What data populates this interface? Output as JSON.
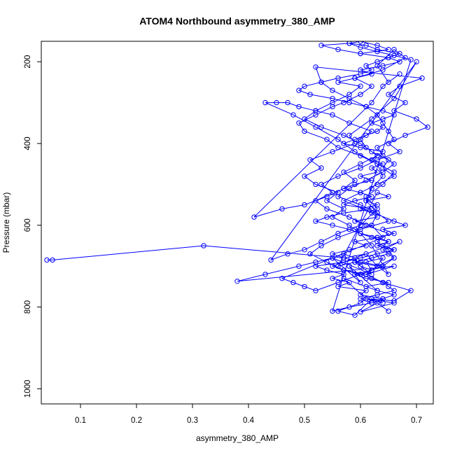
{
  "chart_data": {
    "type": "scatter",
    "title": "ATOM4 Northbound asymmetry_380_AMP",
    "xlabel": "asymmetry_380_AMP",
    "ylabel": "Pressure (mbar)",
    "xlim": [
      0.03,
      0.73
    ],
    "ylim": [
      1037,
      150
    ],
    "y_reversed": true,
    "grid": false,
    "legend": "none",
    "x_ticks": [
      0.1,
      0.2,
      0.3,
      0.4,
      0.5,
      0.6,
      0.7
    ],
    "x_tick_labels": [
      "0.1",
      "0.2",
      "0.3",
      "0.4",
      "0.5",
      "0.6",
      "0.7"
    ],
    "y_ticks": [
      200,
      400,
      600,
      800,
      1000
    ],
    "y_tick_labels": [
      "200",
      "400",
      "600",
      "800",
      "1000"
    ],
    "series": [
      {
        "color": "#0000ff",
        "marker": "open-circle",
        "x": [
          0.04,
          0.05,
          0.32,
          0.57,
          0.61,
          0.63,
          0.59,
          0.62,
          0.55,
          0.6,
          0.58,
          0.63,
          0.57,
          0.61,
          0.6,
          0.56,
          0.59,
          0.62,
          0.64,
          0.61,
          0.66,
          0.6,
          0.63,
          0.65,
          0.62,
          0.66,
          0.69,
          0.64,
          0.61,
          0.66,
          0.38,
          0.43,
          0.49,
          0.52,
          0.55,
          0.57,
          0.59,
          0.6,
          0.62,
          0.61,
          0.64,
          0.63,
          0.65,
          0.62,
          0.6,
          0.58,
          0.55,
          0.57,
          0.54,
          0.56,
          0.52,
          0.5,
          0.53,
          0.51,
          0.55,
          0.59,
          0.58,
          0.62,
          0.66,
          0.7,
          0.44,
          0.47,
          0.5,
          0.53,
          0.56,
          0.6,
          0.63,
          0.61,
          0.64,
          0.66,
          0.63,
          0.6,
          0.56,
          0.54,
          0.5,
          0.49,
          0.52,
          0.55,
          0.57,
          0.6,
          0.62,
          0.59,
          0.64,
          0.68,
          0.66,
          0.63,
          0.65,
          0.67,
          0.64,
          0.62,
          0.41,
          0.46,
          0.5,
          0.54,
          0.57,
          0.59,
          0.57,
          0.6,
          0.63,
          0.61,
          0.6,
          0.62,
          0.58,
          0.55,
          0.52,
          0.49,
          0.47,
          0.45,
          0.43,
          0.48,
          0.52,
          0.56,
          0.59,
          0.63,
          0.64,
          0.62,
          0.61,
          0.63,
          0.62,
          0.64,
          0.46,
          0.48,
          0.5,
          0.52,
          0.56,
          0.6,
          0.64,
          0.66,
          0.65,
          0.63,
          0.65,
          0.61,
          0.58,
          0.54,
          0.52,
          0.55,
          0.53,
          0.56,
          0.6,
          0.63,
          0.67,
          0.65,
          0.68,
          0.72,
          0.7,
          0.66,
          0.68,
          0.65,
          0.67,
          0.71,
          0.52,
          0.53,
          0.55,
          0.58,
          0.61,
          0.63,
          0.64,
          0.65,
          0.66,
          0.63,
          0.64,
          0.66,
          0.64,
          0.61,
          0.58,
          0.56,
          0.6,
          0.63,
          0.65,
          0.6,
          0.56,
          0.53,
          0.51,
          0.54,
          0.57,
          0.61,
          0.63,
          0.66,
          0.64,
          0.67,
          0.55,
          0.57,
          0.6,
          0.62,
          0.64,
          0.65,
          0.66,
          0.63,
          0.6,
          0.62,
          0.64,
          0.66,
          0.63,
          0.61,
          0.65,
          0.61,
          0.59,
          0.62,
          0.64,
          0.6,
          0.57,
          0.55,
          0.58,
          0.61,
          0.59,
          0.63,
          0.66,
          0.64,
          0.68,
          0.66,
          0.57,
          0.6,
          0.63,
          0.66,
          0.64,
          0.65,
          0.62,
          0.6,
          0.57,
          0.53,
          0.5,
          0.52,
          0.55,
          0.58,
          0.6,
          0.56,
          0.59,
          0.62,
          0.6,
          0.64,
          0.67,
          0.65,
          0.67,
          0.63,
          0.61,
          0.58,
          0.6,
          0.63,
          0.66,
          0.69,
          0.55,
          0.58,
          0.62,
          0.64,
          0.6,
          0.61,
          0.56,
          0.58,
          0.55,
          0.57,
          0.54,
          0.52,
          0.57,
          0.6,
          0.63,
          0.66,
          0.63,
          0.65,
          0.62,
          0.6,
          0.59,
          0.62,
          0.59,
          0.63,
          0.62,
          0.6,
          0.63,
          0.61,
          0.65,
          0.63,
          0.56,
          0.59,
          0.62,
          0.65,
          0.66,
          0.64,
          0.65,
          0.63,
          0.6,
          0.58,
          0.55,
          0.52,
          0.54,
          0.57,
          0.62,
          0.57,
          0.59,
          0.62,
          0.6,
          0.57,
          0.59,
          0.62,
          0.6,
          0.63,
          0.62,
          0.64,
          0.62,
          0.63,
          0.64,
          0.6,
          0.57,
          0.59,
          0.61,
          0.63,
          0.64,
          0.62,
          0.64,
          0.66,
          0.64,
          0.61,
          0.58,
          0.55,
          0.51,
          0.49,
          0.5,
          0.53,
          0.56,
          0.6,
          0.62,
          0.61,
          0.63,
          0.65,
          0.6,
          0.56,
          0.53,
          0.58,
          0.6,
          0.63,
          0.65,
          0.6
        ],
        "y": [
          685,
          685,
          650,
          680,
          670,
          700,
          690,
          720,
          680,
          740,
          700,
          760,
          730,
          780,
          790,
          810,
          820,
          780,
          790,
          780,
          790,
          812,
          790,
          810,
          780,
          785,
          760,
          740,
          720,
          700,
          737,
          720,
          700,
          690,
          680,
          670,
          680,
          700,
          710,
          690,
          680,
          700,
          720,
          650,
          620,
          600,
          580,
          560,
          540,
          520,
          500,
          480,
          460,
          440,
          420,
          400,
          380,
          340,
          290,
          200,
          685,
          670,
          660,
          640,
          620,
          600,
          560,
          530,
          500,
          470,
          450,
          430,
          410,
          390,
          370,
          350,
          330,
          310,
          300,
          280,
          260,
          240,
          220,
          190,
          170,
          210,
          250,
          230,
          260,
          300,
          580,
          560,
          550,
          530,
          510,
          490,
          470,
          450,
          430,
          410,
          390,
          370,
          350,
          330,
          320,
          310,
          300,
          300,
          300,
          330,
          360,
          390,
          420,
          450,
          480,
          510,
          540,
          570,
          600,
          630,
          730,
          740,
          750,
          760,
          740,
          720,
          700,
          680,
          660,
          640,
          620,
          600,
          580,
          560,
          540,
          520,
          500,
          480,
          460,
          440,
          420,
          400,
          380,
          360,
          340,
          320,
          300,
          280,
          260,
          240,
          213,
          250,
          270,
          290,
          310,
          330,
          350,
          370,
          390,
          410,
          430,
          450,
          470,
          490,
          510,
          530,
          550,
          570,
          590,
          610,
          630,
          650,
          670,
          690,
          710,
          720,
          700,
          680,
          660,
          640,
          700,
          710,
          720,
          730,
          740,
          750,
          760,
          770,
          780,
          790,
          780,
          770,
          760,
          750,
          740,
          730,
          720,
          710,
          700,
          690,
          680,
          670,
          660,
          650,
          640,
          630,
          620,
          610,
          600,
          590,
          540,
          520,
          500,
          480,
          460,
          440,
          420,
          400,
          380,
          360,
          340,
          320,
          300,
          280,
          260,
          250,
          240,
          230,
          220,
          210,
          200,
          190,
          180,
          170,
          160,
          155,
          165,
          175,
          185,
          195,
          810,
          800,
          790,
          780,
          770,
          760,
          750,
          740,
          730,
          720,
          710,
          700,
          690,
          680,
          670,
          660,
          650,
          640,
          630,
          620,
          610,
          600,
          590,
          580,
          570,
          560,
          550,
          540,
          530,
          520,
          700,
          690,
          680,
          670,
          660,
          650,
          640,
          630,
          620,
          610,
          600,
          590,
          580,
          570,
          560,
          550,
          540,
          530,
          520,
          510,
          500,
          490,
          480,
          470,
          460,
          450,
          440,
          430,
          420,
          410,
          400,
          390,
          380,
          370,
          360,
          350,
          340,
          330,
          320,
          310,
          300,
          290,
          280,
          270,
          260,
          250,
          240,
          230,
          220,
          210,
          200,
          190,
          180,
          170,
          160,
          155,
          150,
          160,
          170,
          180
        ]
      }
    ]
  }
}
